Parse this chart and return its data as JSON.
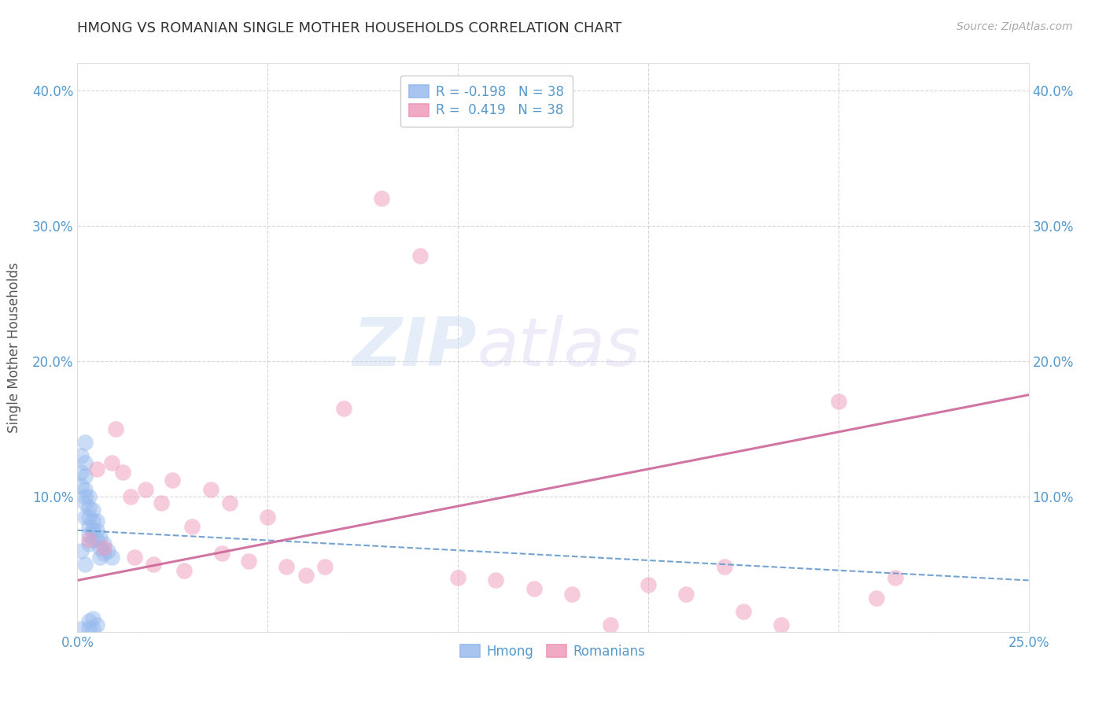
{
  "title": "HMONG VS ROMANIAN SINGLE MOTHER HOUSEHOLDS CORRELATION CHART",
  "source": "Source: ZipAtlas.com",
  "ylabel": "Single Mother Households",
  "xlim": [
    0.0,
    0.25
  ],
  "ylim": [
    0.0,
    0.42
  ],
  "xticks": [
    0.0,
    0.05,
    0.1,
    0.15,
    0.2,
    0.25
  ],
  "yticks": [
    0.0,
    0.1,
    0.2,
    0.3,
    0.4
  ],
  "xtick_labels": [
    "0.0%",
    "",
    "",
    "",
    "",
    "25.0%"
  ],
  "ytick_labels_left": [
    "",
    "10.0%",
    "20.0%",
    "30.0%",
    "40.0%"
  ],
  "ytick_labels_right": [
    "",
    "10.0%",
    "20.0%",
    "30.0%",
    "40.0%"
  ],
  "hmong_color": "#99bbee",
  "romanian_color": "#ee99bb",
  "hmong_line_color": "#6699cc",
  "romanian_line_color": "#cc6699",
  "background_color": "#ffffff",
  "grid_color": "#cccccc",
  "tick_color": "#5599cc",
  "title_color": "#333333",
  "hmong_x": [
    0.001,
    0.001,
    0.001,
    0.002,
    0.002,
    0.002,
    0.002,
    0.002,
    0.003,
    0.003,
    0.003,
    0.003,
    0.003,
    0.003,
    0.004,
    0.004,
    0.004,
    0.004,
    0.004,
    0.005,
    0.005,
    0.005,
    0.005,
    0.006,
    0.006,
    0.006,
    0.007,
    0.007,
    0.008,
    0.009,
    0.002,
    0.003,
    0.003,
    0.004,
    0.001,
    0.002,
    0.001,
    0.002
  ],
  "hmong_y": [
    0.13,
    0.118,
    0.108,
    0.125,
    0.115,
    0.105,
    0.095,
    0.085,
    0.1,
    0.092,
    0.085,
    0.078,
    0.072,
    0.065,
    0.09,
    0.082,
    0.075,
    0.068,
    0.01,
    0.082,
    0.075,
    0.068,
    0.005,
    0.07,
    0.062,
    0.055,
    0.065,
    0.058,
    0.06,
    0.055,
    0.14,
    0.008,
    0.003,
    0.002,
    0.002,
    0.05,
    0.06,
    0.1
  ],
  "romanian_x": [
    0.003,
    0.005,
    0.007,
    0.009,
    0.01,
    0.012,
    0.014,
    0.015,
    0.018,
    0.02,
    0.022,
    0.025,
    0.028,
    0.03,
    0.035,
    0.038,
    0.04,
    0.045,
    0.05,
    0.055,
    0.06,
    0.065,
    0.07,
    0.08,
    0.09,
    0.1,
    0.11,
    0.12,
    0.13,
    0.14,
    0.15,
    0.16,
    0.17,
    0.175,
    0.185,
    0.2,
    0.21,
    0.215
  ],
  "romanian_y": [
    0.068,
    0.12,
    0.062,
    0.125,
    0.15,
    0.118,
    0.1,
    0.055,
    0.105,
    0.05,
    0.095,
    0.112,
    0.045,
    0.078,
    0.105,
    0.058,
    0.095,
    0.052,
    0.085,
    0.048,
    0.042,
    0.048,
    0.165,
    0.32,
    0.278,
    0.04,
    0.038,
    0.032,
    0.028,
    0.005,
    0.035,
    0.028,
    0.048,
    0.015,
    0.005,
    0.17,
    0.025,
    0.04
  ],
  "hmong_line_x": [
    0.0,
    0.25
  ],
  "hmong_line_y": [
    0.075,
    0.038
  ],
  "romanian_line_x": [
    0.0,
    0.25
  ],
  "romanian_line_y": [
    0.038,
    0.175
  ]
}
